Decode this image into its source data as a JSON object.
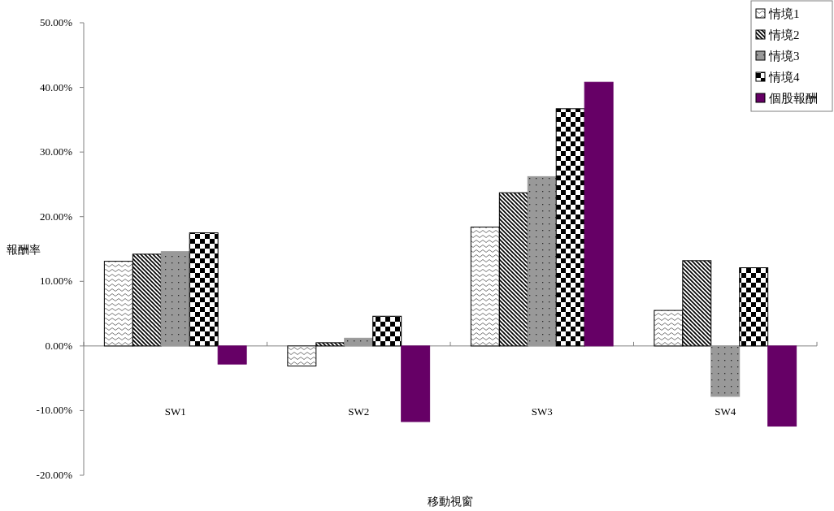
{
  "chart_data": {
    "type": "bar",
    "xlabel": "移動視窗",
    "ylabel": "報酬率",
    "categories": [
      "SW1",
      "SW2",
      "SW3",
      "SW4"
    ],
    "series": [
      {
        "name": "情境1",
        "color": "#000000",
        "values": [
          13.1,
          -3.1,
          18.4,
          5.5
        ]
      },
      {
        "name": "情境2",
        "color": "#000000",
        "values": [
          14.2,
          0.5,
          23.7,
          13.2
        ]
      },
      {
        "name": "情境3",
        "color": "#999999",
        "values": [
          14.6,
          1.2,
          26.2,
          -7.8
        ]
      },
      {
        "name": "情境4",
        "color": "#000000",
        "values": [
          17.5,
          4.6,
          36.7,
          12.1
        ]
      },
      {
        "name": "個股報酬",
        "color": "#660066",
        "values": [
          -2.8,
          -11.7,
          40.8,
          -12.4
        ]
      }
    ],
    "ylim": [
      -20,
      50
    ],
    "yticks": [
      {
        "value": -20,
        "label": "-20.00%"
      },
      {
        "value": -10,
        "label": "-10.00%"
      },
      {
        "value": 0,
        "label": "0.00%"
      },
      {
        "value": 10,
        "label": "10.00%"
      },
      {
        "value": 20,
        "label": "20.00%"
      },
      {
        "value": 30,
        "label": "30.00%"
      },
      {
        "value": 40,
        "label": "40.00%"
      },
      {
        "value": 50,
        "label": "50.00%"
      }
    ],
    "legend": "top right"
  }
}
